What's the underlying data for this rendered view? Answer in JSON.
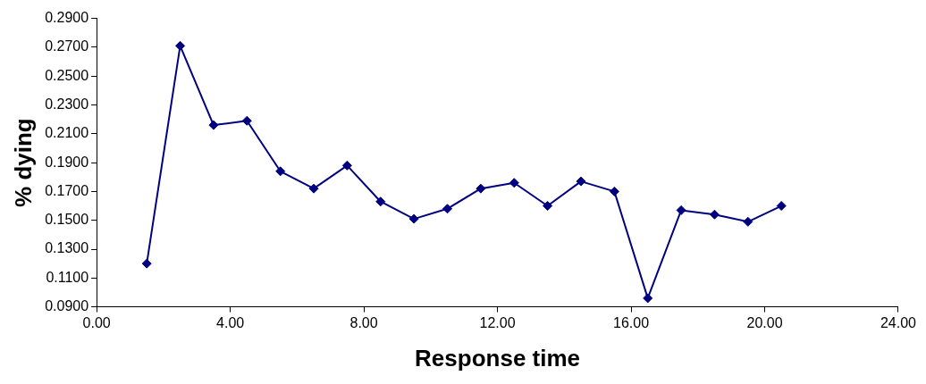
{
  "chart_data": {
    "type": "line",
    "xlabel": "Response time",
    "ylabel": "% dying",
    "x": [
      1.5,
      2.5,
      3.5,
      4.5,
      5.5,
      6.5,
      7.5,
      8.5,
      9.5,
      10.5,
      11.5,
      12.5,
      13.5,
      14.5,
      15.5,
      16.5,
      17.5,
      18.5,
      19.5,
      20.5
    ],
    "series": [
      {
        "color": "#000080",
        "values": [
          0.12,
          0.271,
          0.216,
          0.219,
          0.184,
          0.172,
          0.188,
          0.163,
          0.151,
          0.158,
          0.172,
          0.176,
          0.16,
          0.177,
          0.17,
          0.096,
          0.157,
          0.154,
          0.149,
          0.16
        ]
      }
    ],
    "xlim": [
      0,
      24
    ],
    "xticks": [
      {
        "value": 0,
        "label": "0.00"
      },
      {
        "value": 4,
        "label": "4.00"
      },
      {
        "value": 8,
        "label": "8.00"
      },
      {
        "value": 12,
        "label": "12.00"
      },
      {
        "value": 16,
        "label": "16.00"
      },
      {
        "value": 20,
        "label": "20.00"
      },
      {
        "value": 24,
        "label": "24.00"
      }
    ],
    "ylim": [
      0.09,
      0.29
    ],
    "yticks": [
      {
        "value": 0.09,
        "label": "0.0900"
      },
      {
        "value": 0.11,
        "label": "0.1100"
      },
      {
        "value": 0.13,
        "label": "0.1300"
      },
      {
        "value": 0.15,
        "label": "0.1500"
      },
      {
        "value": 0.17,
        "label": "0.1700"
      },
      {
        "value": 0.19,
        "label": "0.1900"
      },
      {
        "value": 0.21,
        "label": "0.2100"
      },
      {
        "value": 0.23,
        "label": "0.2300"
      },
      {
        "value": 0.25,
        "label": "0.2500"
      },
      {
        "value": 0.27,
        "label": "0.2700"
      },
      {
        "value": 0.29,
        "label": "0.2900"
      }
    ],
    "grid": false,
    "legend": false,
    "marker": "diamond",
    "line_style": "solid"
  }
}
